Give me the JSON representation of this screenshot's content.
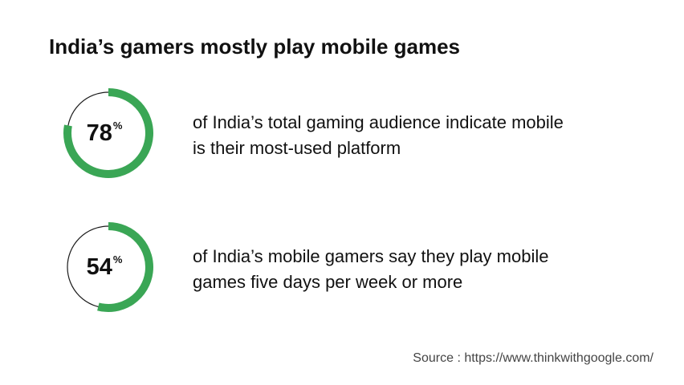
{
  "title": "India’s gamers mostly play mobile games",
  "source": "Source : https://www.thinkwithgoogle.com/",
  "colors": {
    "accent": "#3aa655",
    "ring_outline": "#1a1a1a",
    "text": "#111111"
  },
  "chart_data": {
    "type": "pie",
    "title": "India’s gamers mostly play mobile games",
    "items": [
      {
        "value": 78,
        "unit": "%",
        "label_lines": [
          "of India’s total gaming audience indicate  mobile",
          "is their most-used platform"
        ]
      },
      {
        "value": 54,
        "unit": "%",
        "label_lines": [
          "of India’s mobile gamers say they play mobile",
          "games five days per week or more"
        ]
      }
    ]
  }
}
